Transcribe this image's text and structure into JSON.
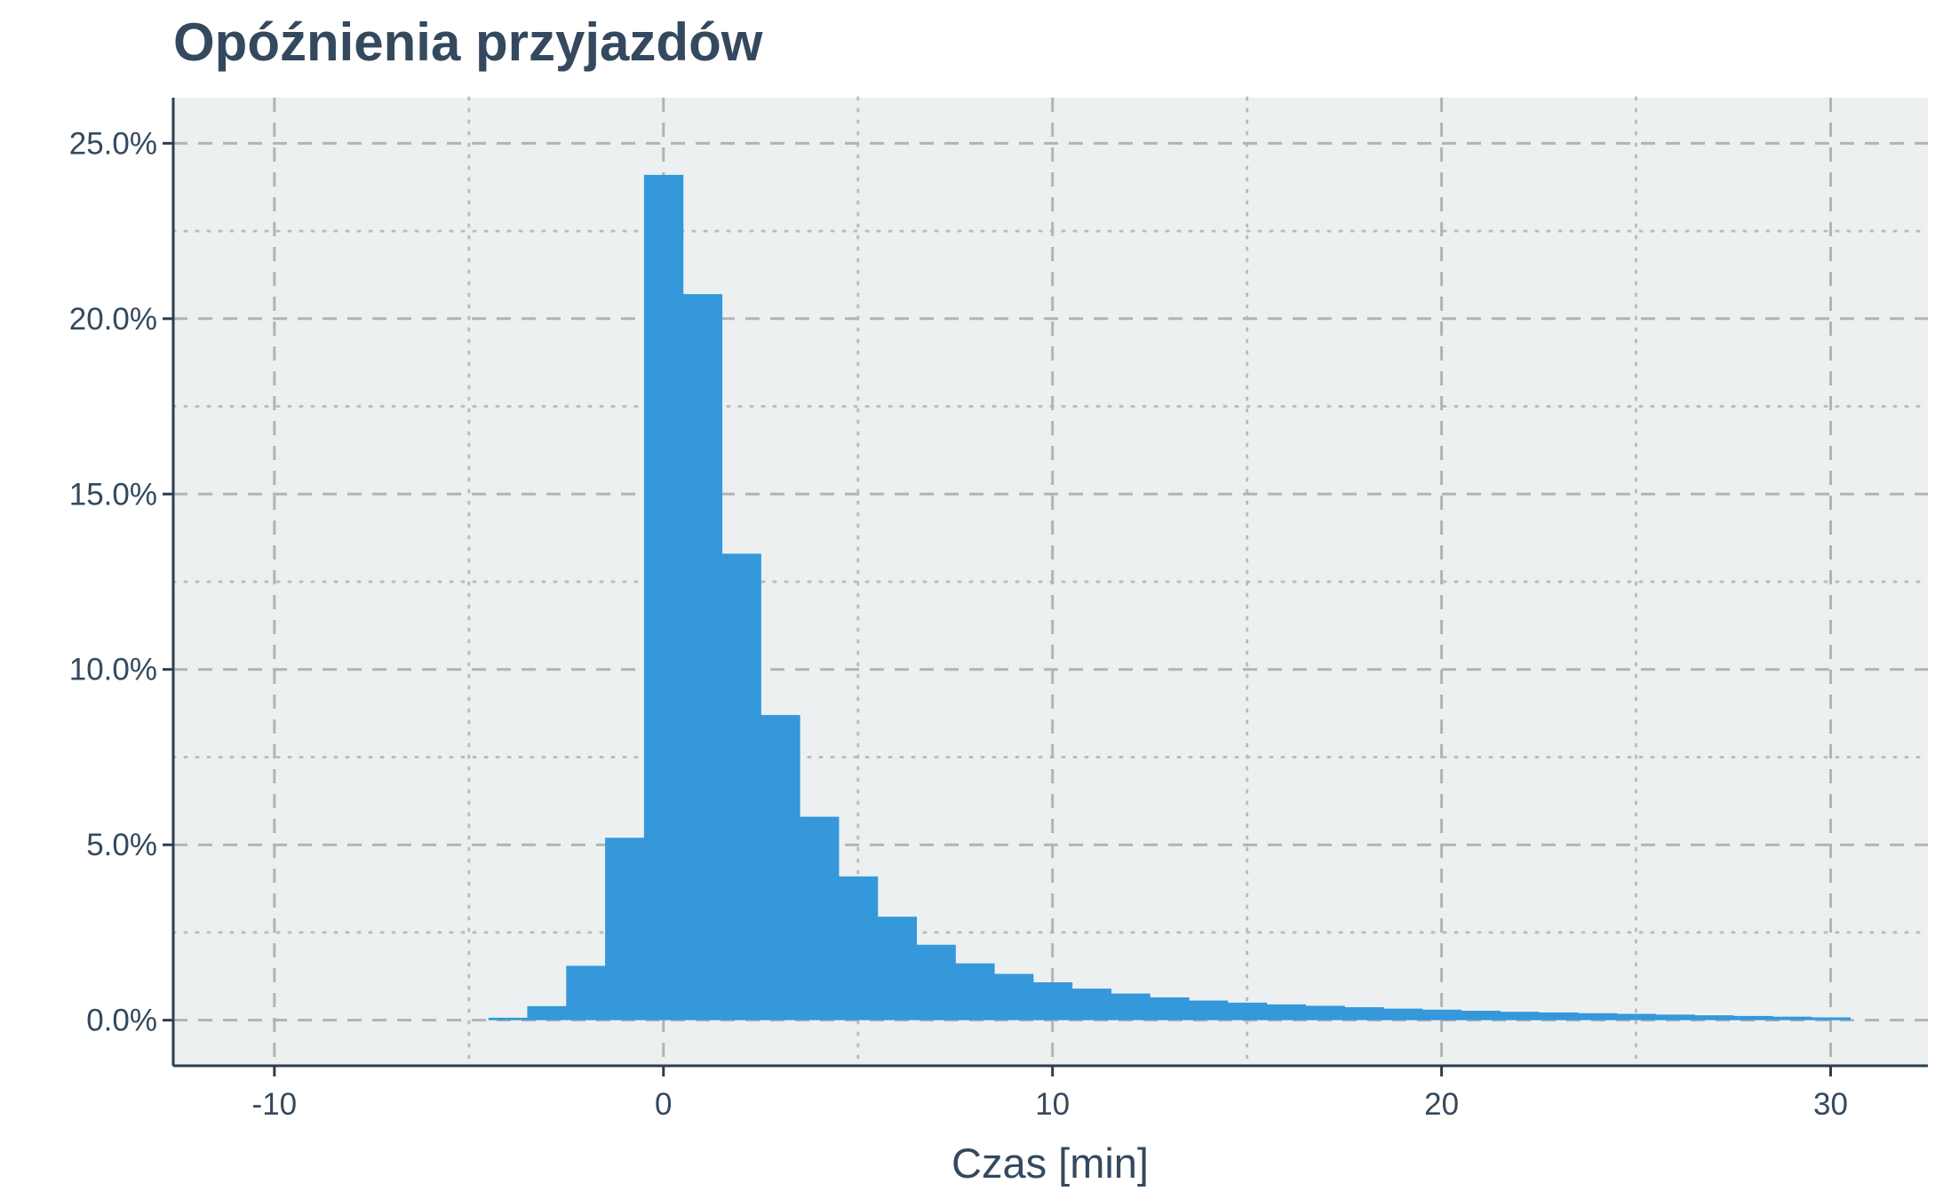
{
  "chart_data": {
    "type": "bar",
    "title": "Opóźnienia przyjazdów",
    "xlabel": "Czas [min]",
    "ylabel": "",
    "x_ticks": [
      "-10",
      "0",
      "10",
      "20",
      "30"
    ],
    "y_ticks": [
      "0.0%",
      "5.0%",
      "10.0%",
      "15.0%",
      "20.0%",
      "25.0%"
    ],
    "xlim": [
      -12.6,
      32.5
    ],
    "ylim": [
      -1.3,
      26.3
    ],
    "bin_width": 1,
    "x": [
      -4,
      -3,
      -2,
      -1,
      0,
      1,
      2,
      3,
      4,
      5,
      6,
      7,
      8,
      9,
      10,
      11,
      12,
      13,
      14,
      15,
      16,
      17,
      18,
      19,
      20,
      21,
      22,
      23,
      24,
      25,
      26,
      27,
      28,
      29,
      30
    ],
    "values": [
      0.07,
      0.4,
      1.55,
      5.2,
      24.1,
      20.7,
      13.3,
      8.7,
      5.8,
      4.1,
      2.95,
      2.15,
      1.62,
      1.32,
      1.08,
      0.9,
      0.76,
      0.65,
      0.56,
      0.5,
      0.45,
      0.41,
      0.37,
      0.33,
      0.3,
      0.27,
      0.24,
      0.22,
      0.2,
      0.18,
      0.16,
      0.14,
      0.12,
      0.1,
      0.08
    ],
    "bar_color": "#3498db",
    "panel_background": "#ecf0f1",
    "text_color": "#34495e",
    "grid": true
  }
}
